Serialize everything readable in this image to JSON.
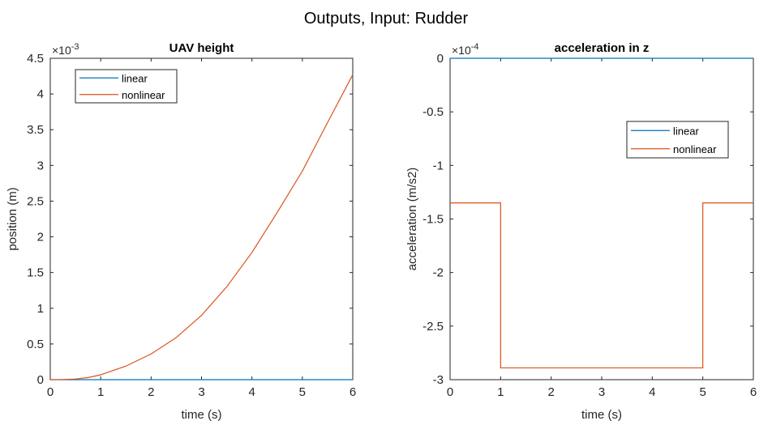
{
  "figure": {
    "title": "Outputs, Input: Rudder"
  },
  "chart_data": [
    {
      "type": "line",
      "title": "UAV height",
      "xlabel": "time (s)",
      "ylabel": "position (m)",
      "xlim": [
        0,
        6
      ],
      "ylim": [
        0,
        4.5
      ],
      "xticks": [
        0,
        1,
        2,
        3,
        4,
        5,
        6
      ],
      "xtick_labels": [
        "0",
        "1",
        "2",
        "3",
        "4",
        "5",
        "6"
      ],
      "yticks": [
        0,
        0.5,
        1,
        1.5,
        2,
        2.5,
        3,
        3.5,
        4,
        4.5
      ],
      "ytick_labels": [
        "0",
        "0.5",
        "1",
        "1.5",
        "2",
        "2.5",
        "3",
        "3.5",
        "4",
        "4.5"
      ],
      "y_exponent_base": "×10",
      "y_exponent_power": "-3",
      "grid": false,
      "legend_position": "top-left",
      "series": [
        {
          "name": "linear",
          "color": "#0072BD",
          "x": [
            0,
            1,
            2,
            3,
            4,
            5,
            6
          ],
          "y": [
            0,
            0,
            0,
            0,
            0,
            0,
            0
          ]
        },
        {
          "name": "nonlinear",
          "color": "#D95319",
          "x": [
            0,
            0.25,
            0.5,
            0.75,
            1,
            1.5,
            2,
            2.5,
            3,
            3.5,
            4,
            4.5,
            5,
            5.5,
            6
          ],
          "y": [
            0,
            0.002,
            0.009,
            0.03,
            0.068,
            0.19,
            0.36,
            0.59,
            0.9,
            1.3,
            1.78,
            2.34,
            2.92,
            3.6,
            4.27
          ]
        }
      ]
    },
    {
      "type": "line",
      "title": "acceleration in z",
      "xlabel": "time (s)",
      "ylabel": "acceleration (m/s2)",
      "xlim": [
        0,
        6
      ],
      "ylim": [
        -3,
        0
      ],
      "xticks": [
        0,
        1,
        2,
        3,
        4,
        5,
        6
      ],
      "xtick_labels": [
        "0",
        "1",
        "2",
        "3",
        "4",
        "5",
        "6"
      ],
      "yticks": [
        0,
        -0.5,
        -1,
        -1.5,
        -2,
        -2.5,
        -3
      ],
      "ytick_labels": [
        "0",
        "-0.5",
        "-1",
        "-1.5",
        "-2",
        "-2.5",
        "-3"
      ],
      "y_exponent_base": "×10",
      "y_exponent_power": "-4",
      "grid": false,
      "legend_position": "top-right",
      "series": [
        {
          "name": "linear",
          "color": "#0072BD",
          "x": [
            0,
            6
          ],
          "y": [
            0,
            0
          ]
        },
        {
          "name": "nonlinear",
          "color": "#D95319",
          "x": [
            0,
            1,
            1,
            5,
            5,
            6
          ],
          "y": [
            -1.35,
            -1.35,
            -2.89,
            -2.89,
            -1.35,
            -1.35
          ]
        }
      ]
    }
  ]
}
